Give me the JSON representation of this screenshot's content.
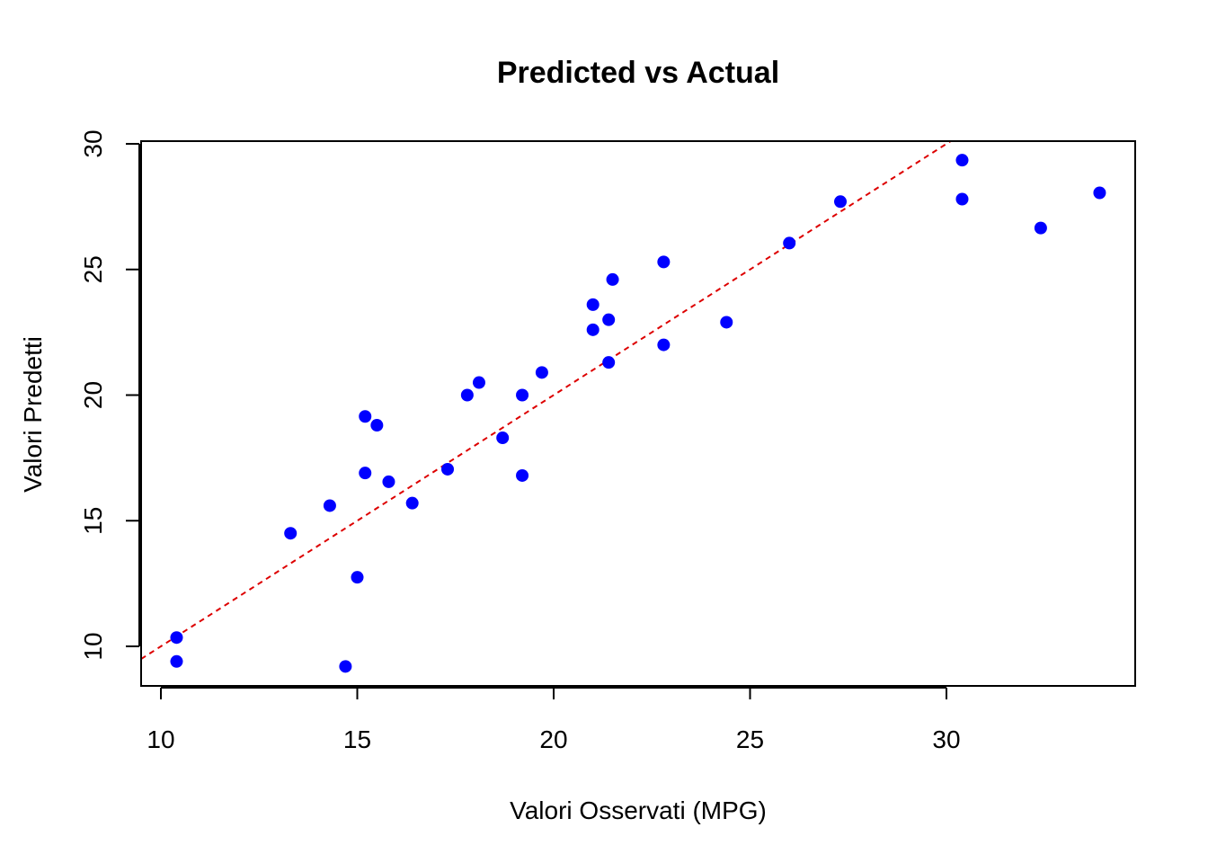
{
  "chart_data": {
    "type": "scatter",
    "title": "Predicted vs Actual",
    "xlabel": "Valori Osservati (MPG)",
    "ylabel": "Valori Predetti",
    "xlim": [
      9.5,
      34.8
    ],
    "ylim": [
      8.5,
      30.2
    ],
    "xticks": [
      10,
      15,
      20,
      25,
      30
    ],
    "yticks": [
      10,
      15,
      20,
      25,
      30
    ],
    "point_color": "#0000ff",
    "reference_line": {
      "slope": 1,
      "intercept": 0,
      "color": "#dd0000",
      "style": "dashed"
    },
    "grid": false,
    "x": [
      21.0,
      21.0,
      22.8,
      21.4,
      18.7,
      18.1,
      14.3,
      24.4,
      22.8,
      19.2,
      17.8,
      16.4,
      17.3,
      15.2,
      10.4,
      10.4,
      14.7,
      32.4,
      30.4,
      33.9,
      21.5,
      15.5,
      15.2,
      13.3,
      19.2,
      27.3,
      26.0,
      30.4,
      15.8,
      19.7,
      15.0,
      21.4
    ],
    "y": [
      22.6,
      23.6,
      25.3,
      21.3,
      18.3,
      20.5,
      15.6,
      22.9,
      22.0,
      20.0,
      20.0,
      15.7,
      17.05,
      16.9,
      10.35,
      9.4,
      9.2,
      26.65,
      29.35,
      28.05,
      24.6,
      18.8,
      19.15,
      14.5,
      16.8,
      27.7,
      26.05,
      27.8,
      16.55,
      20.9,
      12.75,
      23.0
    ]
  }
}
